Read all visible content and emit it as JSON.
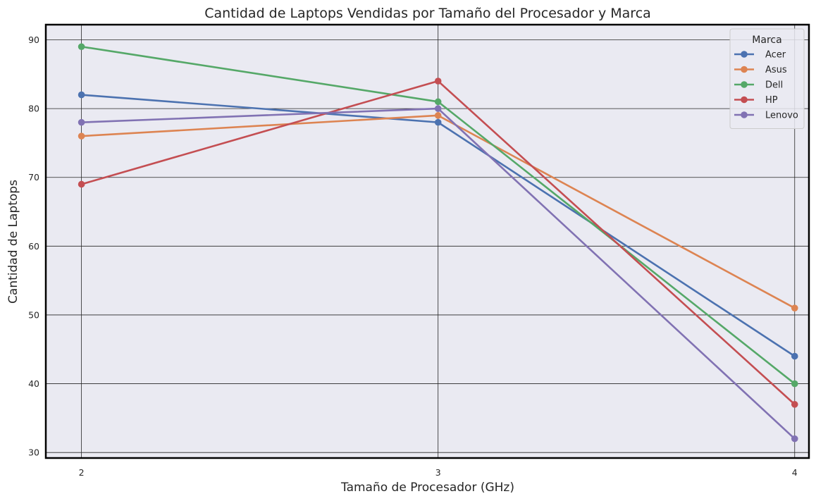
{
  "chart_data": {
    "type": "line",
    "title": "Cantidad de Laptops Vendidas por Tamaño del Procesador y Marca",
    "xlabel": "Tamaño de Procesador (GHz)",
    "ylabel": "Cantidad de Laptops",
    "x": [
      2,
      3,
      4
    ],
    "xlim": [
      1.9,
      4.04
    ],
    "ylim": [
      29.2,
      92.2
    ],
    "yticks": [
      30,
      40,
      50,
      60,
      70,
      80,
      90
    ],
    "grid": true,
    "legend": {
      "title": "Marca",
      "placement": "top-right"
    },
    "series": [
      {
        "name": "Acer",
        "color": "#4c72b0",
        "values": [
          82,
          78,
          44
        ]
      },
      {
        "name": "Asus",
        "color": "#dd8452",
        "values": [
          76,
          79,
          51
        ]
      },
      {
        "name": "Dell",
        "color": "#55a868",
        "values": [
          89,
          81,
          40
        ]
      },
      {
        "name": "HP",
        "color": "#c44e52",
        "values": [
          69,
          84,
          37
        ]
      },
      {
        "name": "Lenovo",
        "color": "#8172b3",
        "values": [
          78,
          80,
          32
        ]
      }
    ],
    "colors": {
      "plot_background": "#eaeaf2",
      "grid": "#262626",
      "frame": "#000000"
    }
  }
}
